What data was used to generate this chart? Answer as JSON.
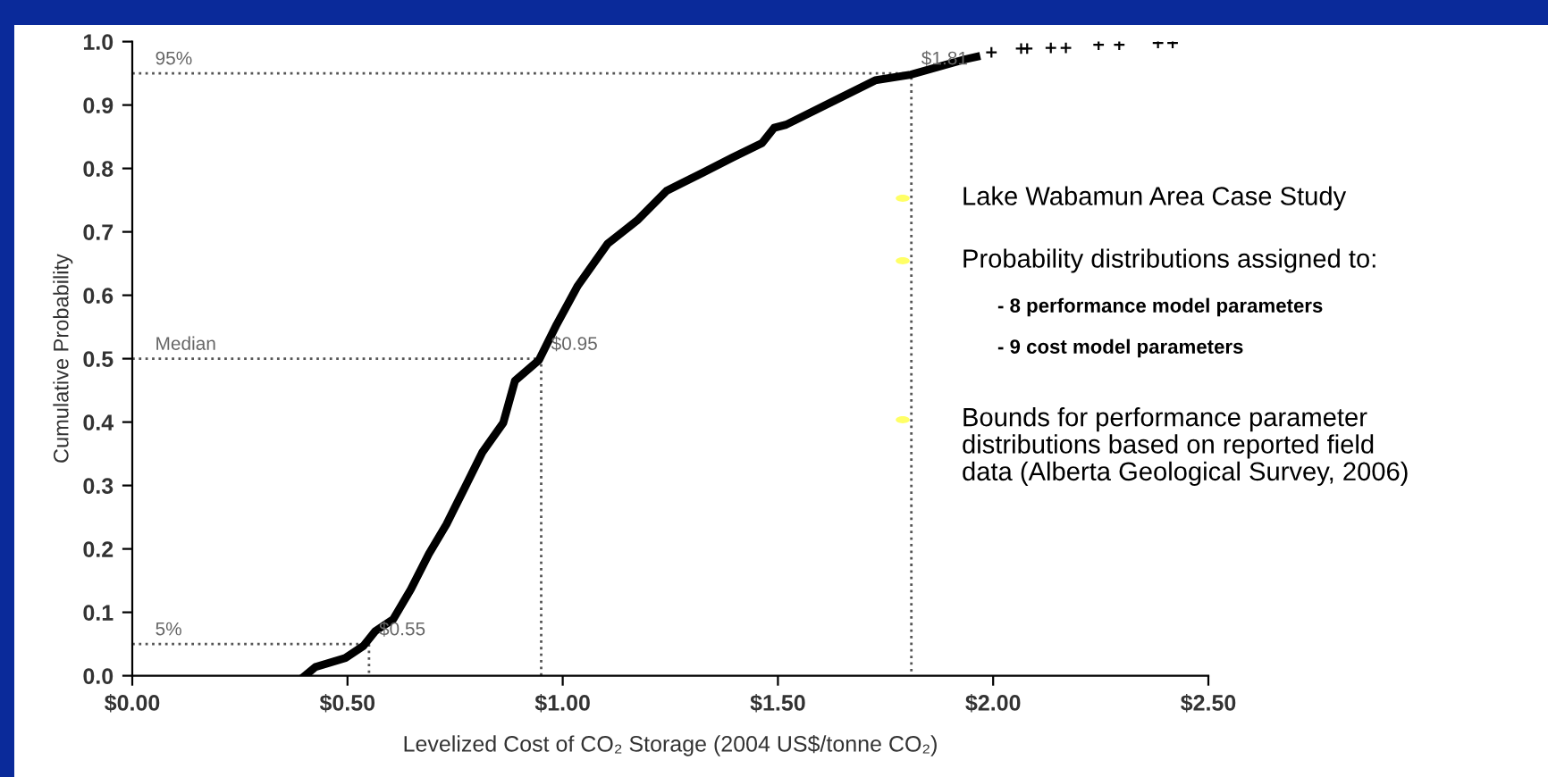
{
  "chart_data": {
    "type": "line",
    "xlabel": "Levelized Cost of CO₂ Storage (2004 US$/tonne CO₂)",
    "ylabel": "Cumulative Probability",
    "xlim": [
      0,
      2.5
    ],
    "xticks": [
      {
        "value": 0,
        "label": "$0.00"
      },
      {
        "value": 0.5,
        "label": "$0.50"
      },
      {
        "value": 1,
        "label": "$1.00"
      },
      {
        "value": 1.5,
        "label": "$1.50"
      },
      {
        "value": 2,
        "label": "$2.00"
      },
      {
        "value": 2.5,
        "label": "$2.50"
      }
    ],
    "ylim": [
      0,
      1
    ],
    "yticks": [
      {
        "value": 0,
        "label": "0.0"
      },
      {
        "value": 0.1,
        "label": "0.1"
      },
      {
        "value": 0.2,
        "label": "0.2"
      },
      {
        "value": 0.3,
        "label": "0.3"
      },
      {
        "value": 0.4,
        "label": "0.4"
      },
      {
        "value": 0.5,
        "label": "0.5"
      },
      {
        "value": 0.6,
        "label": "0.6"
      },
      {
        "value": 0.7,
        "label": "0.7"
      },
      {
        "value": 0.8,
        "label": "0.8"
      },
      {
        "value": 0.9,
        "label": "0.9"
      },
      {
        "value": 1,
        "label": "1.0"
      }
    ],
    "grid": false,
    "legend": false,
    "series": [
      {
        "color": "#000000",
        "x": [
          0.401,
          0.426,
          0.495,
          0.537,
          0.564,
          0.606,
          0.647,
          0.689,
          0.73,
          0.772,
          0.813,
          0.862,
          0.889,
          0.945,
          0.986,
          1.035,
          1.104,
          1.173,
          1.242,
          1.325,
          1.394,
          1.463,
          1.491,
          1.519,
          1.629,
          1.726,
          1.809,
          1.934,
          1.961
        ],
        "values": [
          0,
          0.014,
          0.028,
          0.047,
          0.07,
          0.089,
          0.136,
          0.192,
          0.239,
          0.296,
          0.352,
          0.399,
          0.465,
          0.498,
          0.554,
          0.615,
          0.681,
          0.718,
          0.765,
          0.793,
          0.817,
          0.84,
          0.864,
          0.869,
          0.906,
          0.939,
          0.948,
          0.972,
          0.976
        ]
      },
      {
        "type": "scatter",
        "marker": "cross",
        "color": "#000000",
        "x": [
          1.996,
          2.065,
          2.079,
          2.134,
          2.169,
          2.245,
          2.293,
          2.383,
          2.417
        ],
        "values": [
          0.983,
          0.989,
          0.989,
          0.99,
          0.99,
          0.995,
          0.995,
          0.998,
          0.998
        ]
      },
      {
        "type": "line",
        "line_style": "dotted",
        "color": "#555555",
        "x": [
          0,
          0.55,
          0.55
        ],
        "values": [
          0.05,
          0.05,
          0
        ]
      },
      {
        "type": "line",
        "line_style": "dotted",
        "color": "#555555",
        "x": [
          0,
          0.95,
          0.95
        ],
        "values": [
          0.5,
          0.5,
          0
        ]
      },
      {
        "type": "line",
        "line_style": "dotted",
        "color": "#555555",
        "x": [
          0,
          1.81,
          1.81
        ],
        "values": [
          0.95,
          0.95,
          0
        ]
      }
    ],
    "annotations": [
      {
        "text": "5%",
        "x": 0.03,
        "y": 0.05
      },
      {
        "text": "$0.55",
        "x": 0.55,
        "y": 0.05
      },
      {
        "text": "Median",
        "x": 0.03,
        "y": 0.5
      },
      {
        "text": "$0.95",
        "x": 0.95,
        "y": 0.5
      },
      {
        "text": "95%",
        "x": 0.03,
        "y": 0.95
      },
      {
        "text": "$1.81",
        "x": 1.81,
        "y": 0.95
      },
      "Lake Wabamun Area Case Study",
      "Probability distributions assigned to:",
      "- 8 performance model parameters",
      "- 9 cost model parameters",
      "Bounds for performance parameter\ndistributions based on reported field\ndata (Alberta Geological Survey, 2006)"
    ]
  }
}
